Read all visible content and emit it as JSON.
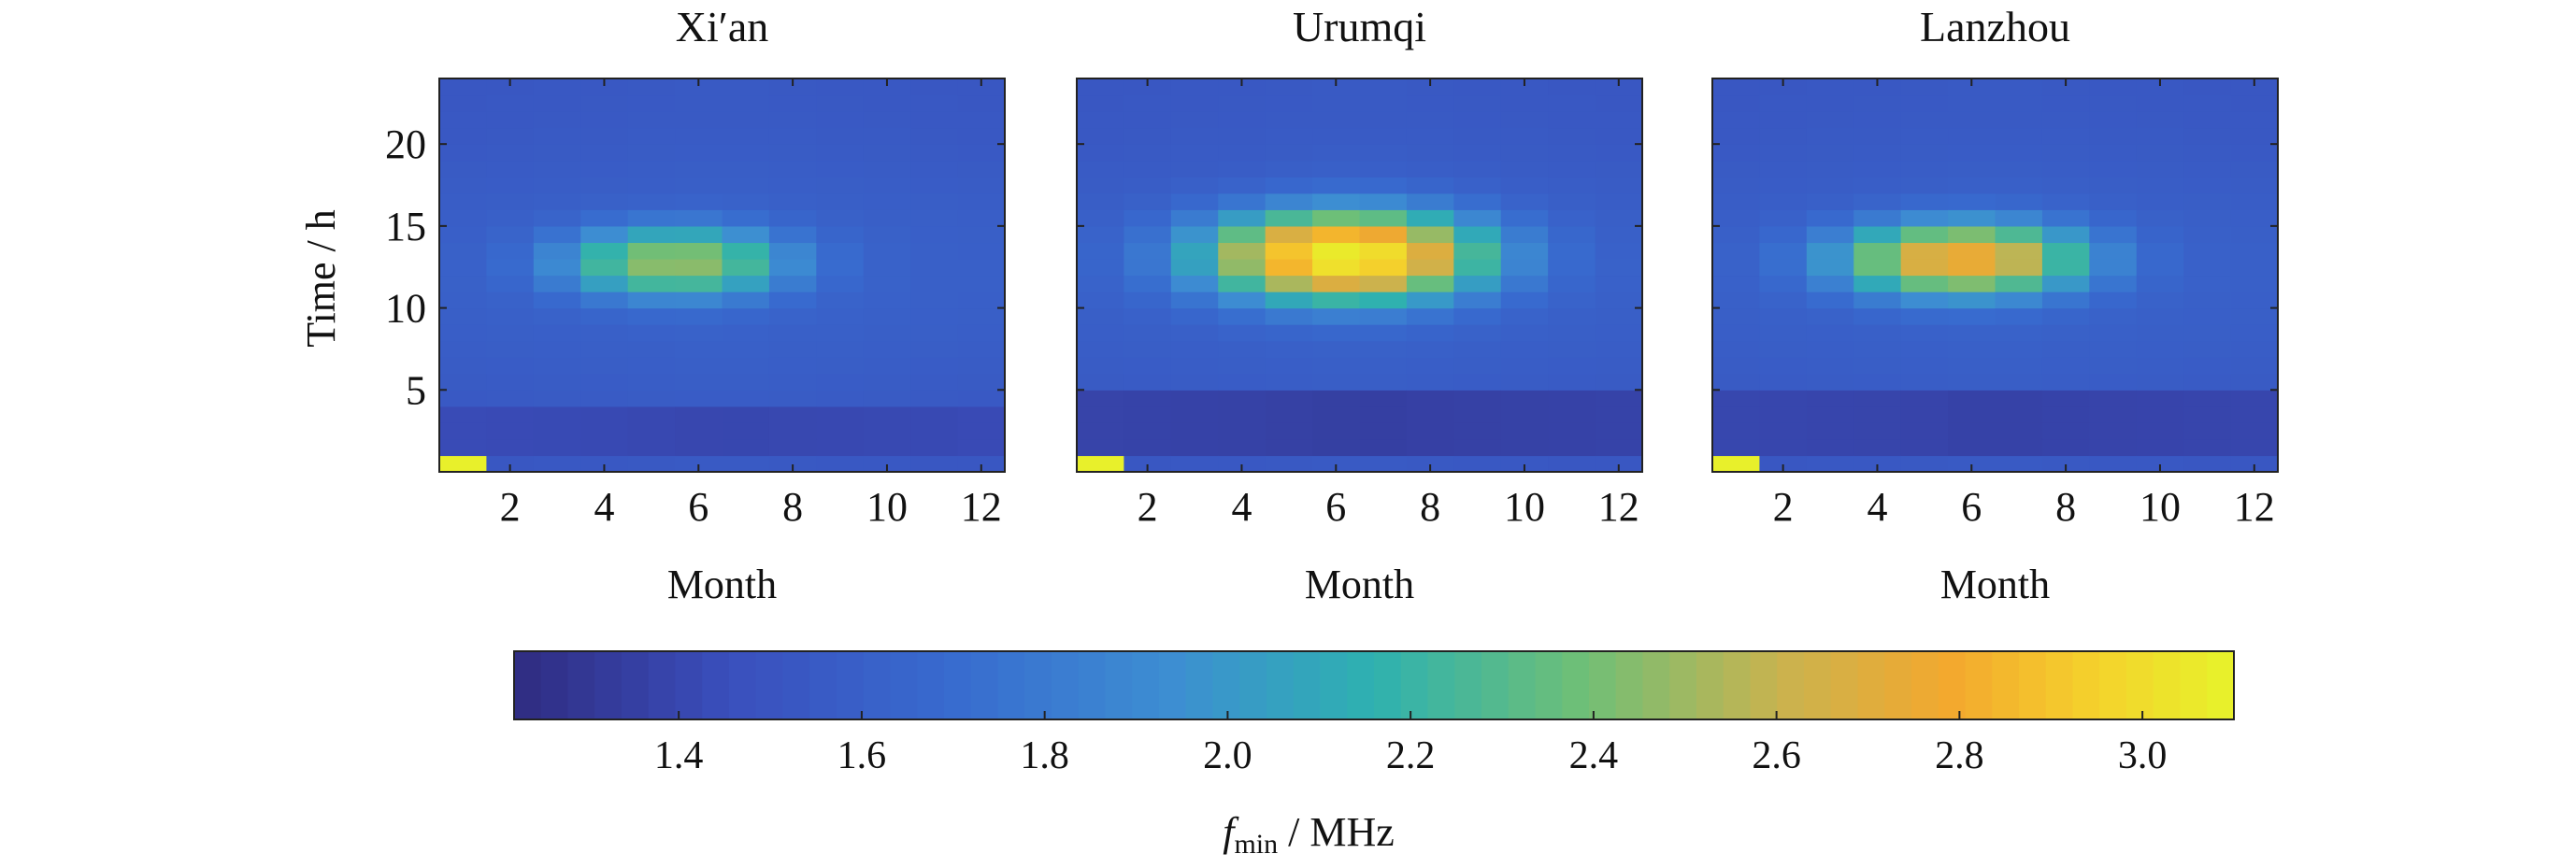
{
  "figure": {
    "y_axis_label": "Time / h",
    "colorbar": {
      "label_italic": "f",
      "label_sub": "min",
      "label_rest": " / MHz",
      "range": [
        1.22,
        3.1
      ],
      "ticks": [
        "1.4",
        "1.6",
        "1.8",
        "2.0",
        "2.2",
        "2.4",
        "2.6",
        "2.8",
        "3.0"
      ],
      "colormap": "parula"
    }
  },
  "chart_data": [
    {
      "type": "heatmap",
      "title": "Xi′an",
      "xlabel": "Month",
      "ylabel": "Time / h",
      "x_ticks": [
        "2",
        "4",
        "6",
        "8",
        "10",
        "12"
      ],
      "y_ticks": [
        "5",
        "10",
        "15",
        "20"
      ],
      "xlim": [
        0.5,
        12.5
      ],
      "ylim": [
        0,
        24
      ],
      "peak_month": 5.5,
      "peak_hour": 12.8,
      "peak_value": 2.45,
      "background_value": 1.58,
      "width_month": 2.0,
      "width_hour": 1.8,
      "flatness": 0.6,
      "night_low_hours": [
        1,
        4
      ],
      "night_low_value": 1.35,
      "highlight_cell": {
        "month": 1,
        "hour": 0.5,
        "value": 3.1
      }
    },
    {
      "type": "heatmap",
      "title": "Urumqi",
      "xlabel": "Month",
      "ylabel": "",
      "x_ticks": [
        "2",
        "4",
        "6",
        "8",
        "10",
        "12"
      ],
      "y_ticks": [],
      "xlim": [
        0.5,
        12.5
      ],
      "ylim": [
        0,
        24
      ],
      "peak_month": 6.2,
      "peak_hour": 13.2,
      "peak_value": 3.05,
      "background_value": 1.58,
      "width_month": 2.5,
      "width_hour": 2.3,
      "flatness": 0.55,
      "night_low_hours": [
        1,
        5
      ],
      "night_low_value": 1.3,
      "highlight_cell": {
        "month": 1,
        "hour": 0.5,
        "value": 3.1
      }
    },
    {
      "type": "heatmap",
      "title": "Lanzhou",
      "xlabel": "Month",
      "ylabel": "",
      "x_ticks": [
        "2",
        "4",
        "6",
        "8",
        "10",
        "12"
      ],
      "y_ticks": [],
      "xlim": [
        0.5,
        12.5
      ],
      "ylim": [
        0,
        24
      ],
      "peak_month": 5.8,
      "peak_hour": 13.0,
      "peak_value": 2.75,
      "background_value": 1.58,
      "width_month": 2.2,
      "width_hour": 1.9,
      "flatness": 0.6,
      "night_low_hours": [
        1,
        5
      ],
      "night_low_value": 1.32,
      "highlight_cell": {
        "month": 1,
        "hour": 0.5,
        "value": 3.1
      }
    }
  ]
}
